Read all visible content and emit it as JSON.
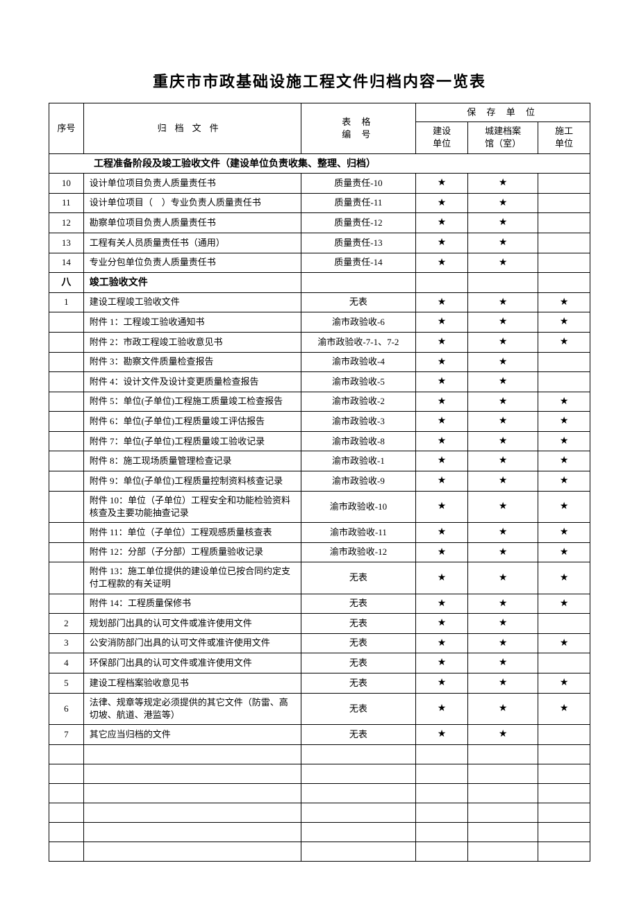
{
  "title": "重庆市市政基础设施工程文件归档内容一览表",
  "headers": {
    "seq": "序号",
    "file": "归档文件",
    "code": "表 格\n编 号",
    "preserve": "保 存 单 位",
    "unit_build": "建设\n单位",
    "unit_archive": "城建档案\n馆（室）",
    "unit_construct": "施工\n单位"
  },
  "section_header": "工程准备阶段及竣工验收文件（建设单位负责收集、整理、归档）",
  "star": "★",
  "rows": [
    {
      "seq": "10",
      "file": "设计单位项目负责人质量责任书",
      "code": "质量责任-10",
      "s1": true,
      "s2": true,
      "s3": false
    },
    {
      "seq": "11",
      "file": "设计单位项目（　）专业负责人质量责任书",
      "code": "质量责任-11",
      "s1": true,
      "s2": true,
      "s3": false
    },
    {
      "seq": "12",
      "file": "勘察单位项目负责人质量责任书",
      "code": "质量责任-12",
      "s1": true,
      "s2": true,
      "s3": false
    },
    {
      "seq": "13",
      "file": "工程有关人员质量责任书（通用）",
      "code": "质量责任-13",
      "s1": true,
      "s2": true,
      "s3": false
    },
    {
      "seq": "14",
      "file": "专业分包单位负责人质量责任书",
      "code": "质量责任-14",
      "s1": true,
      "s2": true,
      "s3": false
    },
    {
      "seq": "八",
      "file": "竣工验收文件",
      "code": "",
      "bold": true
    },
    {
      "seq": "1",
      "file": "建设工程竣工验收文件",
      "code": "无表",
      "s1": true,
      "s2": true,
      "s3": true
    },
    {
      "seq": "",
      "file": "附件 1：工程竣工验收通知书",
      "code": "渝市政验收-6",
      "s1": true,
      "s2": true,
      "s3": true
    },
    {
      "seq": "",
      "file": "附件 2：市政工程竣工验收意见书",
      "code": "渝市政验收-7-1、7-2",
      "s1": true,
      "s2": true,
      "s3": true
    },
    {
      "seq": "",
      "file": "附件 3：勘察文件质量检查报告",
      "code": "渝市政验收-4",
      "s1": true,
      "s2": true,
      "s3": false
    },
    {
      "seq": "",
      "file": "附件 4：设计文件及设计变更质量检查报告",
      "code": "渝市政验收-5",
      "s1": true,
      "s2": true,
      "s3": false
    },
    {
      "seq": "",
      "file": "附件 5：单位(子单位)工程施工质量竣工检查报告",
      "code": "渝市政验收-2",
      "s1": true,
      "s2": true,
      "s3": true
    },
    {
      "seq": "",
      "file": "附件 6：单位(子单位)工程质量竣工评估报告",
      "code": "渝市政验收-3",
      "s1": true,
      "s2": true,
      "s3": true
    },
    {
      "seq": "",
      "file": "附件 7：单位(子单位)工程质量竣工验收记录",
      "code": "渝市政验收-8",
      "s1": true,
      "s2": true,
      "s3": true
    },
    {
      "seq": "",
      "file": "附件 8：施工现场质量管理检查记录",
      "code": "渝市政验收-1",
      "s1": true,
      "s2": true,
      "s3": true
    },
    {
      "seq": "",
      "file": "附件 9：单位(子单位)工程质量控制资料核查记录",
      "code": "渝市政验收-9",
      "s1": true,
      "s2": true,
      "s3": true
    },
    {
      "seq": "",
      "file": "附件 10：单位（子单位）工程安全和功能检验资料核查及主要功能抽查记录",
      "code": "渝市政验收-10",
      "s1": true,
      "s2": true,
      "s3": true
    },
    {
      "seq": "",
      "file": "附件 11：单位（子单位）工程观感质量核查表",
      "code": "渝市政验收-11",
      "s1": true,
      "s2": true,
      "s3": true
    },
    {
      "seq": "",
      "file": "附件 12：分部（子分部）工程质量验收记录",
      "code": "渝市政验收-12",
      "s1": true,
      "s2": true,
      "s3": true
    },
    {
      "seq": "",
      "file": "附件 13：施工单位提供的建设单位已按合同约定支付工程款的有关证明",
      "code": "无表",
      "s1": true,
      "s2": true,
      "s3": true
    },
    {
      "seq": "",
      "file": "附件 14：工程质量保修书",
      "code": "无表",
      "s1": true,
      "s2": true,
      "s3": true
    },
    {
      "seq": "2",
      "file": "规划部门出具的认可文件或准许使用文件",
      "code": "无表",
      "s1": true,
      "s2": true,
      "s3": false
    },
    {
      "seq": "3",
      "file": "公安消防部门出具的认可文件或准许使用文件",
      "code": "无表",
      "s1": true,
      "s2": true,
      "s3": true
    },
    {
      "seq": "4",
      "file": "环保部门出具的认可文件或准许使用文件",
      "code": "无表",
      "s1": true,
      "s2": true,
      "s3": false
    },
    {
      "seq": "5",
      "file": "建设工程档案验收意见书",
      "code": "无表",
      "s1": true,
      "s2": true,
      "s3": true
    },
    {
      "seq": "6",
      "file": "法律、规章等规定必须提供的其它文件（防雷、高切坡、航道、港监等）",
      "code": "无表",
      "s1": true,
      "s2": true,
      "s3": true
    },
    {
      "seq": "7",
      "file": "其它应当归档的文件",
      "code": "无表",
      "s1": true,
      "s2": true,
      "s3": false
    }
  ],
  "empty_rows": 6
}
